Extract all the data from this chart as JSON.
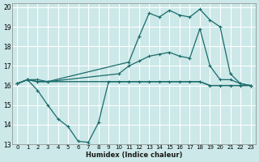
{
  "xlabel": "Humidex (Indice chaleur)",
  "bg_color": "#cce8e8",
  "grid_color": "#ffffff",
  "line_color": "#1a6b6b",
  "xlim": [
    -0.5,
    23.5
  ],
  "ylim": [
    13,
    20.2
  ],
  "yticks": [
    13,
    14,
    15,
    16,
    17,
    18,
    19,
    20
  ],
  "xticks": [
    0,
    1,
    2,
    3,
    4,
    5,
    6,
    7,
    8,
    9,
    10,
    11,
    12,
    13,
    14,
    15,
    16,
    17,
    18,
    19,
    20,
    21,
    22,
    23
  ],
  "series": [
    {
      "x": [
        0,
        1,
        2,
        3,
        4,
        5,
        6,
        7,
        8,
        9,
        10,
        11,
        12,
        13,
        14,
        15,
        16,
        17,
        18,
        19,
        20,
        21,
        22,
        23
      ],
      "y": [
        16.1,
        16.3,
        16.2,
        16.2,
        16.2,
        16.2,
        16.2,
        16.2,
        16.2,
        16.2,
        16.2,
        16.2,
        16.2,
        16.2,
        16.2,
        16.2,
        16.2,
        16.2,
        16.2,
        16.0,
        16.0,
        16.0,
        16.0,
        16.0
      ],
      "marker": "",
      "linestyle": "-",
      "linewidth": 1.0
    },
    {
      "x": [
        0,
        1,
        2,
        3,
        11,
        12,
        13,
        14,
        15,
        16,
        17,
        18,
        19,
        20,
        21,
        22,
        23
      ],
      "y": [
        16.1,
        16.3,
        16.2,
        16.2,
        17.2,
        18.5,
        19.7,
        19.5,
        19.85,
        19.6,
        19.5,
        19.9,
        19.35,
        19.0,
        16.6,
        16.1,
        16.0
      ],
      "marker": "+",
      "linestyle": "-",
      "linewidth": 0.9
    },
    {
      "x": [
        0,
        1,
        2,
        3,
        4,
        5,
        6,
        7,
        8,
        9,
        10,
        11,
        12,
        13,
        14,
        15,
        16,
        17,
        18,
        19,
        20,
        21,
        22,
        23
      ],
      "y": [
        16.1,
        16.3,
        15.75,
        15.0,
        14.3,
        13.9,
        13.15,
        13.1,
        14.1,
        16.2,
        16.2,
        16.2,
        16.2,
        16.2,
        16.2,
        16.2,
        16.2,
        16.2,
        16.2,
        16.0,
        16.0,
        16.0,
        16.0,
        16.0
      ],
      "marker": "+",
      "linestyle": "-",
      "linewidth": 0.9
    },
    {
      "x": [
        0,
        1,
        2,
        3,
        10,
        11,
        12,
        13,
        14,
        15,
        16,
        17,
        18,
        19,
        20,
        21,
        22,
        23
      ],
      "y": [
        16.1,
        16.3,
        16.3,
        16.2,
        16.6,
        17.0,
        17.25,
        17.5,
        17.6,
        17.7,
        17.5,
        17.4,
        18.9,
        17.0,
        16.3,
        16.3,
        16.1,
        16.0
      ],
      "marker": "+",
      "linestyle": "-",
      "linewidth": 0.9
    }
  ]
}
